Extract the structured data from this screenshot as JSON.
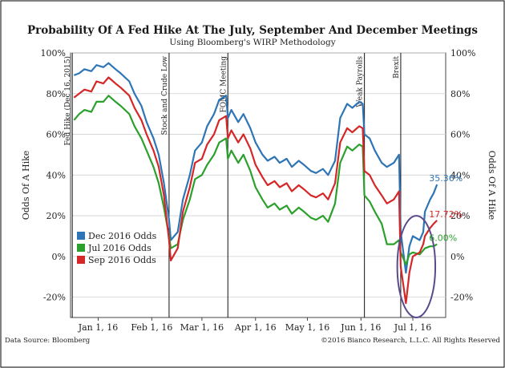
{
  "chart_data": {
    "type": "line",
    "title": "Probability Of A Fed Hike At The July, September And December Meetings",
    "subtitle": "Using Bloomberg's WIRP Methodology",
    "ylabel_left": "Odds Of A Hike",
    "ylabel_right": "Odds Of A Hike",
    "ylim": [
      -30,
      100
    ],
    "yticks": [
      -20,
      0,
      20,
      40,
      60,
      80,
      100
    ],
    "ytick_labels": [
      "-20%",
      "0%",
      "20%",
      "40%",
      "60%",
      "80%",
      "100%"
    ],
    "xlim": [
      "2015-12-16",
      "2016-07-20"
    ],
    "xticks": [
      {
        "date": "2016-01-01",
        "label": "Jan 1, 16"
      },
      {
        "date": "2016-02-01",
        "label": "Feb 1, 16"
      },
      {
        "date": "2016-03-01",
        "label": "Mar 1, 16"
      },
      {
        "date": "2016-04-01",
        "label": "Apr 1, 16"
      },
      {
        "date": "2016-05-01",
        "label": "May 1, 16"
      },
      {
        "date": "2016-06-01",
        "label": "Jun 1, 16"
      },
      {
        "date": "2016-07-01",
        "label": "Jul 1, 16"
      }
    ],
    "events": [
      {
        "date": "2015-12-17",
        "label": "Fed Hike (Dec 16, 2015)"
      },
      {
        "date": "2016-02-11",
        "label": "Stock and Crude Low"
      },
      {
        "date": "2016-03-16",
        "label": "FOMC Meeting"
      },
      {
        "date": "2016-06-03",
        "label": "Weak Payrolls"
      },
      {
        "date": "2016-06-24",
        "label": "Brexit"
      }
    ],
    "legend": {
      "position": "lower-left",
      "entries": [
        "Dec 2016 Odds",
        "Jul 2016 Odds",
        "Sep 2016 Odds"
      ]
    },
    "series": [
      {
        "name": "Dec 2016 Odds",
        "color": "#2e75b6",
        "end_label": "35.36%",
        "points": [
          [
            "2015-12-18",
            89
          ],
          [
            "2015-12-21",
            90
          ],
          [
            "2015-12-24",
            92
          ],
          [
            "2015-12-28",
            91
          ],
          [
            "2015-12-31",
            94
          ],
          [
            "2016-01-04",
            93
          ],
          [
            "2016-01-07",
            95
          ],
          [
            "2016-01-11",
            92
          ],
          [
            "2016-01-14",
            90
          ],
          [
            "2016-01-19",
            86
          ],
          [
            "2016-01-22",
            80
          ],
          [
            "2016-01-26",
            74
          ],
          [
            "2016-01-29",
            66
          ],
          [
            "2016-02-02",
            58
          ],
          [
            "2016-02-05",
            50
          ],
          [
            "2016-02-08",
            36
          ],
          [
            "2016-02-11",
            18
          ],
          [
            "2016-02-12",
            8
          ],
          [
            "2016-02-16",
            12
          ],
          [
            "2016-02-19",
            28
          ],
          [
            "2016-02-23",
            40
          ],
          [
            "2016-02-26",
            52
          ],
          [
            "2016-03-01",
            56
          ],
          [
            "2016-03-04",
            64
          ],
          [
            "2016-03-08",
            70
          ],
          [
            "2016-03-11",
            77
          ],
          [
            "2016-03-15",
            79
          ],
          [
            "2016-03-16",
            68
          ],
          [
            "2016-03-18",
            72
          ],
          [
            "2016-03-22",
            66
          ],
          [
            "2016-03-25",
            70
          ],
          [
            "2016-03-29",
            63
          ],
          [
            "2016-04-01",
            56
          ],
          [
            "2016-04-05",
            50
          ],
          [
            "2016-04-08",
            47
          ],
          [
            "2016-04-12",
            49
          ],
          [
            "2016-04-15",
            46
          ],
          [
            "2016-04-19",
            48
          ],
          [
            "2016-04-22",
            44
          ],
          [
            "2016-04-26",
            47
          ],
          [
            "2016-04-29",
            45
          ],
          [
            "2016-05-03",
            42
          ],
          [
            "2016-05-06",
            41
          ],
          [
            "2016-05-10",
            43
          ],
          [
            "2016-05-13",
            40
          ],
          [
            "2016-05-17",
            47
          ],
          [
            "2016-05-20",
            68
          ],
          [
            "2016-05-24",
            75
          ],
          [
            "2016-05-27",
            73
          ],
          [
            "2016-05-31",
            76
          ],
          [
            "2016-06-02",
            75
          ],
          [
            "2016-06-03",
            60
          ],
          [
            "2016-06-06",
            58
          ],
          [
            "2016-06-09",
            52
          ],
          [
            "2016-06-13",
            46
          ],
          [
            "2016-06-16",
            44
          ],
          [
            "2016-06-20",
            46
          ],
          [
            "2016-06-23",
            50
          ],
          [
            "2016-06-24",
            12
          ],
          [
            "2016-06-27",
            -8
          ],
          [
            "2016-06-29",
            5
          ],
          [
            "2016-07-01",
            10
          ],
          [
            "2016-07-05",
            8
          ],
          [
            "2016-07-07",
            12
          ],
          [
            "2016-07-08",
            22
          ],
          [
            "2016-07-11",
            28
          ],
          [
            "2016-07-13",
            31
          ],
          [
            "2016-07-15",
            35.36
          ]
        ]
      },
      {
        "name": "Jul 2016 Odds",
        "color": "#2ca02c",
        "end_label": "6.00%",
        "points": [
          [
            "2015-12-18",
            67
          ],
          [
            "2015-12-21",
            70
          ],
          [
            "2015-12-24",
            72
          ],
          [
            "2015-12-28",
            71
          ],
          [
            "2015-12-31",
            76
          ],
          [
            "2016-01-04",
            76
          ],
          [
            "2016-01-07",
            79
          ],
          [
            "2016-01-11",
            76
          ],
          [
            "2016-01-14",
            74
          ],
          [
            "2016-01-19",
            70
          ],
          [
            "2016-01-22",
            64
          ],
          [
            "2016-01-26",
            58
          ],
          [
            "2016-01-29",
            52
          ],
          [
            "2016-02-02",
            44
          ],
          [
            "2016-02-05",
            36
          ],
          [
            "2016-02-08",
            24
          ],
          [
            "2016-02-11",
            10
          ],
          [
            "2016-02-12",
            4
          ],
          [
            "2016-02-16",
            6
          ],
          [
            "2016-02-19",
            18
          ],
          [
            "2016-02-23",
            28
          ],
          [
            "2016-02-26",
            38
          ],
          [
            "2016-03-01",
            40
          ],
          [
            "2016-03-04",
            45
          ],
          [
            "2016-03-08",
            50
          ],
          [
            "2016-03-11",
            56
          ],
          [
            "2016-03-15",
            58
          ],
          [
            "2016-03-16",
            48
          ],
          [
            "2016-03-18",
            52
          ],
          [
            "2016-03-22",
            46
          ],
          [
            "2016-03-25",
            50
          ],
          [
            "2016-03-29",
            42
          ],
          [
            "2016-04-01",
            34
          ],
          [
            "2016-04-05",
            28
          ],
          [
            "2016-04-08",
            24
          ],
          [
            "2016-04-12",
            26
          ],
          [
            "2016-04-15",
            23
          ],
          [
            "2016-04-19",
            25
          ],
          [
            "2016-04-22",
            21
          ],
          [
            "2016-04-26",
            24
          ],
          [
            "2016-04-29",
            22
          ],
          [
            "2016-05-03",
            19
          ],
          [
            "2016-05-06",
            18
          ],
          [
            "2016-05-10",
            20
          ],
          [
            "2016-05-13",
            17
          ],
          [
            "2016-05-17",
            26
          ],
          [
            "2016-05-20",
            46
          ],
          [
            "2016-05-24",
            54
          ],
          [
            "2016-05-27",
            52
          ],
          [
            "2016-05-31",
            55
          ],
          [
            "2016-06-02",
            54
          ],
          [
            "2016-06-03",
            30
          ],
          [
            "2016-06-06",
            27
          ],
          [
            "2016-06-09",
            22
          ],
          [
            "2016-06-13",
            16
          ],
          [
            "2016-06-16",
            6
          ],
          [
            "2016-06-20",
            6
          ],
          [
            "2016-06-23",
            8
          ],
          [
            "2016-06-24",
            2
          ],
          [
            "2016-06-27",
            -4
          ],
          [
            "2016-06-29",
            1
          ],
          [
            "2016-07-01",
            2
          ],
          [
            "2016-07-05",
            1
          ],
          [
            "2016-07-07",
            3
          ],
          [
            "2016-07-08",
            4
          ],
          [
            "2016-07-11",
            5
          ],
          [
            "2016-07-13",
            5
          ],
          [
            "2016-07-15",
            6.0
          ]
        ]
      },
      {
        "name": "Sep 2016 Odds",
        "color": "#d62728",
        "end_label": "17.72%",
        "points": [
          [
            "2015-12-18",
            78
          ],
          [
            "2015-12-21",
            80
          ],
          [
            "2015-12-24",
            82
          ],
          [
            "2015-12-28",
            81
          ],
          [
            "2015-12-31",
            86
          ],
          [
            "2016-01-04",
            85
          ],
          [
            "2016-01-07",
            88
          ],
          [
            "2016-01-11",
            85
          ],
          [
            "2016-01-14",
            83
          ],
          [
            "2016-01-19",
            79
          ],
          [
            "2016-01-22",
            73
          ],
          [
            "2016-01-26",
            67
          ],
          [
            "2016-01-29",
            60
          ],
          [
            "2016-02-02",
            52
          ],
          [
            "2016-02-05",
            44
          ],
          [
            "2016-02-08",
            30
          ],
          [
            "2016-02-11",
            8
          ],
          [
            "2016-02-12",
            -2
          ],
          [
            "2016-02-16",
            4
          ],
          [
            "2016-02-19",
            22
          ],
          [
            "2016-02-23",
            34
          ],
          [
            "2016-02-26",
            46
          ],
          [
            "2016-03-01",
            48
          ],
          [
            "2016-03-04",
            55
          ],
          [
            "2016-03-08",
            60
          ],
          [
            "2016-03-11",
            67
          ],
          [
            "2016-03-15",
            69
          ],
          [
            "2016-03-16",
            58
          ],
          [
            "2016-03-18",
            62
          ],
          [
            "2016-03-22",
            56
          ],
          [
            "2016-03-25",
            60
          ],
          [
            "2016-03-29",
            53
          ],
          [
            "2016-04-01",
            45
          ],
          [
            "2016-04-05",
            39
          ],
          [
            "2016-04-08",
            35
          ],
          [
            "2016-04-12",
            37
          ],
          [
            "2016-04-15",
            34
          ],
          [
            "2016-04-19",
            36
          ],
          [
            "2016-04-22",
            32
          ],
          [
            "2016-04-26",
            35
          ],
          [
            "2016-04-29",
            33
          ],
          [
            "2016-05-03",
            30
          ],
          [
            "2016-05-06",
            29
          ],
          [
            "2016-05-10",
            31
          ],
          [
            "2016-05-13",
            28
          ],
          [
            "2016-05-17",
            36
          ],
          [
            "2016-05-20",
            56
          ],
          [
            "2016-05-24",
            63
          ],
          [
            "2016-05-27",
            61
          ],
          [
            "2016-05-31",
            64
          ],
          [
            "2016-06-02",
            63
          ],
          [
            "2016-06-03",
            42
          ],
          [
            "2016-06-06",
            40
          ],
          [
            "2016-06-09",
            35
          ],
          [
            "2016-06-13",
            30
          ],
          [
            "2016-06-16",
            26
          ],
          [
            "2016-06-20",
            28
          ],
          [
            "2016-06-23",
            32
          ],
          [
            "2016-06-24",
            -5
          ],
          [
            "2016-06-27",
            -23
          ],
          [
            "2016-06-29",
            -8
          ],
          [
            "2016-07-01",
            0
          ],
          [
            "2016-07-05",
            2
          ],
          [
            "2016-07-07",
            6
          ],
          [
            "2016-07-08",
            10
          ],
          [
            "2016-07-11",
            14
          ],
          [
            "2016-07-13",
            16
          ],
          [
            "2016-07-15",
            17.72
          ]
        ]
      }
    ],
    "annotation": {
      "type": "ellipse",
      "color": "#5b4a8b",
      "x_from": "2016-06-22",
      "x_to": "2016-07-14",
      "y_from": -30,
      "y_to": 20
    }
  },
  "footer": {
    "source": "Data Source: Bloomberg",
    "copyright": "©2016 Bianco Research, L.L.C. All Rights Reserved"
  }
}
